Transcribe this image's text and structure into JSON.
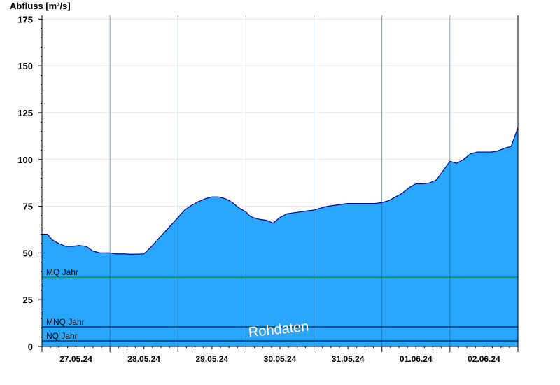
{
  "chart_data": {
    "type": "area",
    "title": "",
    "ylabel": "Abfluss [m³/s]",
    "xlabel": "",
    "ylim": [
      0,
      177
    ],
    "yticks": [
      0,
      25,
      50,
      75,
      100,
      125,
      150,
      175
    ],
    "x_date_ticks": [
      "27.05.24",
      "28.05.24",
      "29.05.24",
      "30.05.24",
      "31.05.24",
      "01.06.24",
      "02.06.24"
    ],
    "x_range_days": [
      0,
      7
    ],
    "grid": true,
    "fill_color": "#29a6ff",
    "line_color": "#00008b",
    "x_unit": "days since start of 27.05.24",
    "series": [
      {
        "x": [
          0,
          0.08,
          0.15,
          0.25,
          0.35,
          0.45,
          0.55,
          0.65,
          0.75,
          0.85,
          0.95,
          1.0,
          1.1,
          1.2,
          1.3,
          1.4,
          1.5,
          1.6,
          1.7,
          1.8,
          1.9,
          2.0,
          2.1,
          2.2,
          2.3,
          2.4,
          2.5,
          2.6,
          2.7,
          2.8,
          2.9,
          3.0,
          3.05,
          3.1,
          3.15,
          3.2,
          3.3,
          3.4,
          3.5,
          3.6,
          3.7,
          3.8,
          3.9,
          4.0,
          4.1,
          4.2,
          4.3,
          4.4,
          4.5,
          4.6,
          4.7,
          4.8,
          4.9,
          5.0,
          5.1,
          5.2,
          5.3,
          5.4,
          5.5,
          5.6,
          5.7,
          5.8,
          5.9,
          6.0,
          6.1,
          6.2,
          6.3,
          6.4,
          6.5,
          6.6,
          6.7,
          6.8,
          6.9,
          7.0
        ],
        "values": [
          60,
          60,
          57,
          55,
          53.5,
          53.5,
          54,
          53.5,
          51,
          50,
          50,
          50,
          49.5,
          49.5,
          49.3,
          49.3,
          49.5,
          53,
          57,
          61,
          65,
          69,
          73,
          75.5,
          77.5,
          79,
          80,
          80,
          79,
          77,
          74,
          72,
          70,
          69,
          68.5,
          68,
          67.5,
          66,
          69,
          71,
          71.5,
          72,
          72.5,
          73,
          74,
          75,
          75.5,
          76,
          76.5,
          76.5,
          76.5,
          76.5,
          76.5,
          77,
          78,
          80,
          82,
          85,
          87,
          87,
          87.5,
          89,
          94,
          99,
          98,
          100,
          103,
          104,
          104,
          104,
          104.5,
          106,
          107,
          117
        ]
      }
    ],
    "reference_lines": [
      {
        "label": "MQ Jahr",
        "value": 37,
        "color": "#008000"
      },
      {
        "label": "MNQ Jahr",
        "value": 10.5,
        "color": "#000000"
      },
      {
        "label": "NQ Jahr",
        "value": 3,
        "color": "#000000"
      }
    ],
    "annotations": [
      {
        "text": "Rohdaten"
      }
    ]
  }
}
